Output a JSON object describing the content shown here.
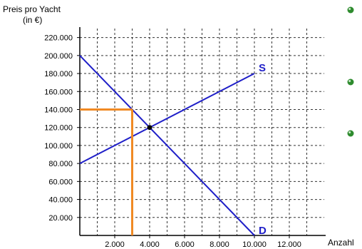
{
  "chart_data": {
    "type": "line",
    "ylabel_line1": "Preis pro Yacht",
    "ylabel_line2": "(in €)",
    "xlabel": "Anzahl",
    "xlim": [
      0,
      14000
    ],
    "ylim": [
      0,
      230000
    ],
    "x_ticks": [
      2000,
      4000,
      6000,
      8000,
      10000,
      12000
    ],
    "x_tick_labels": [
      "2.000",
      "4.000",
      "6.000",
      "8.000",
      "10.000",
      "12.000"
    ],
    "y_ticks": [
      20000,
      40000,
      60000,
      80000,
      100000,
      120000,
      140000,
      160000,
      180000,
      200000,
      220000
    ],
    "y_tick_labels": [
      "20.000",
      "40.000",
      "60.000",
      "80.000",
      "100.000",
      "120.000",
      "140.000",
      "160.000",
      "180.000",
      "200.000",
      "220.000"
    ],
    "grid": true,
    "series": [
      {
        "name": "S",
        "color": "#1f1fc8",
        "x": [
          0,
          10000
        ],
        "y": [
          80000,
          180000
        ]
      },
      {
        "name": "D",
        "color": "#1f1fc8",
        "x": [
          0,
          10000
        ],
        "y": [
          200000,
          0
        ]
      }
    ],
    "equilibrium": {
      "x": 4000,
      "y": 120000
    },
    "price_ceiling_marker": {
      "color": "#f08a24",
      "x": 3000,
      "y": 140000
    }
  },
  "side_dots": {
    "color": "#2e8b2e",
    "count": 3
  }
}
